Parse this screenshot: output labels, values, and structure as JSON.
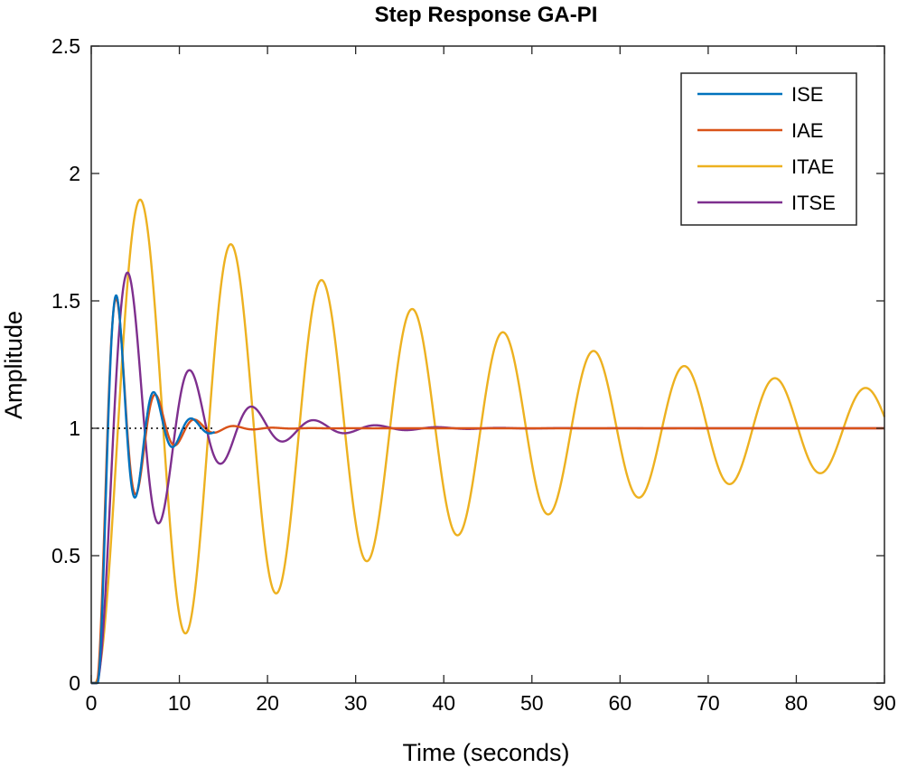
{
  "chart_data": {
    "type": "line",
    "title": "Step Response GA-PI",
    "xlabel": "Time (seconds)",
    "ylabel": "Amplitude",
    "xlim": [
      0,
      90
    ],
    "ylim": [
      0,
      2.5
    ],
    "xticks": [
      "0",
      "10",
      "20",
      "30",
      "40",
      "50",
      "60",
      "70",
      "80",
      "90"
    ],
    "yticks": [
      "0",
      "0.5",
      "1",
      "1.5",
      "2",
      "2.5"
    ],
    "grid": false,
    "legend_position": "top-right",
    "reference_line": {
      "y": 1,
      "style": "dotted",
      "x_range": [
        0,
        14
      ]
    },
    "series": [
      {
        "name": "ISE",
        "color": "#0072BD",
        "model": {
          "delay": 0.7,
          "K": 1,
          "zeta": 0.203,
          "wn": 1.51,
          "t_end": 14
        }
      },
      {
        "name": "IAE",
        "color": "#D95319",
        "model": {
          "delay": 0.6,
          "K": 1,
          "zeta": 0.21,
          "wn": 1.45,
          "t_end": 90
        }
      },
      {
        "name": "ITAE",
        "color": "#EDB120",
        "model": {
          "delay": 0.4,
          "K": 1,
          "zeta": 0.0345,
          "wn": 0.611,
          "t_end": 90
        }
      },
      {
        "name": "ITSE",
        "color": "#7E2F8E",
        "model": {
          "delay": 0.6,
          "K": 1,
          "zeta": 0.155,
          "wn": 0.905,
          "t_end": 90
        }
      }
    ]
  }
}
